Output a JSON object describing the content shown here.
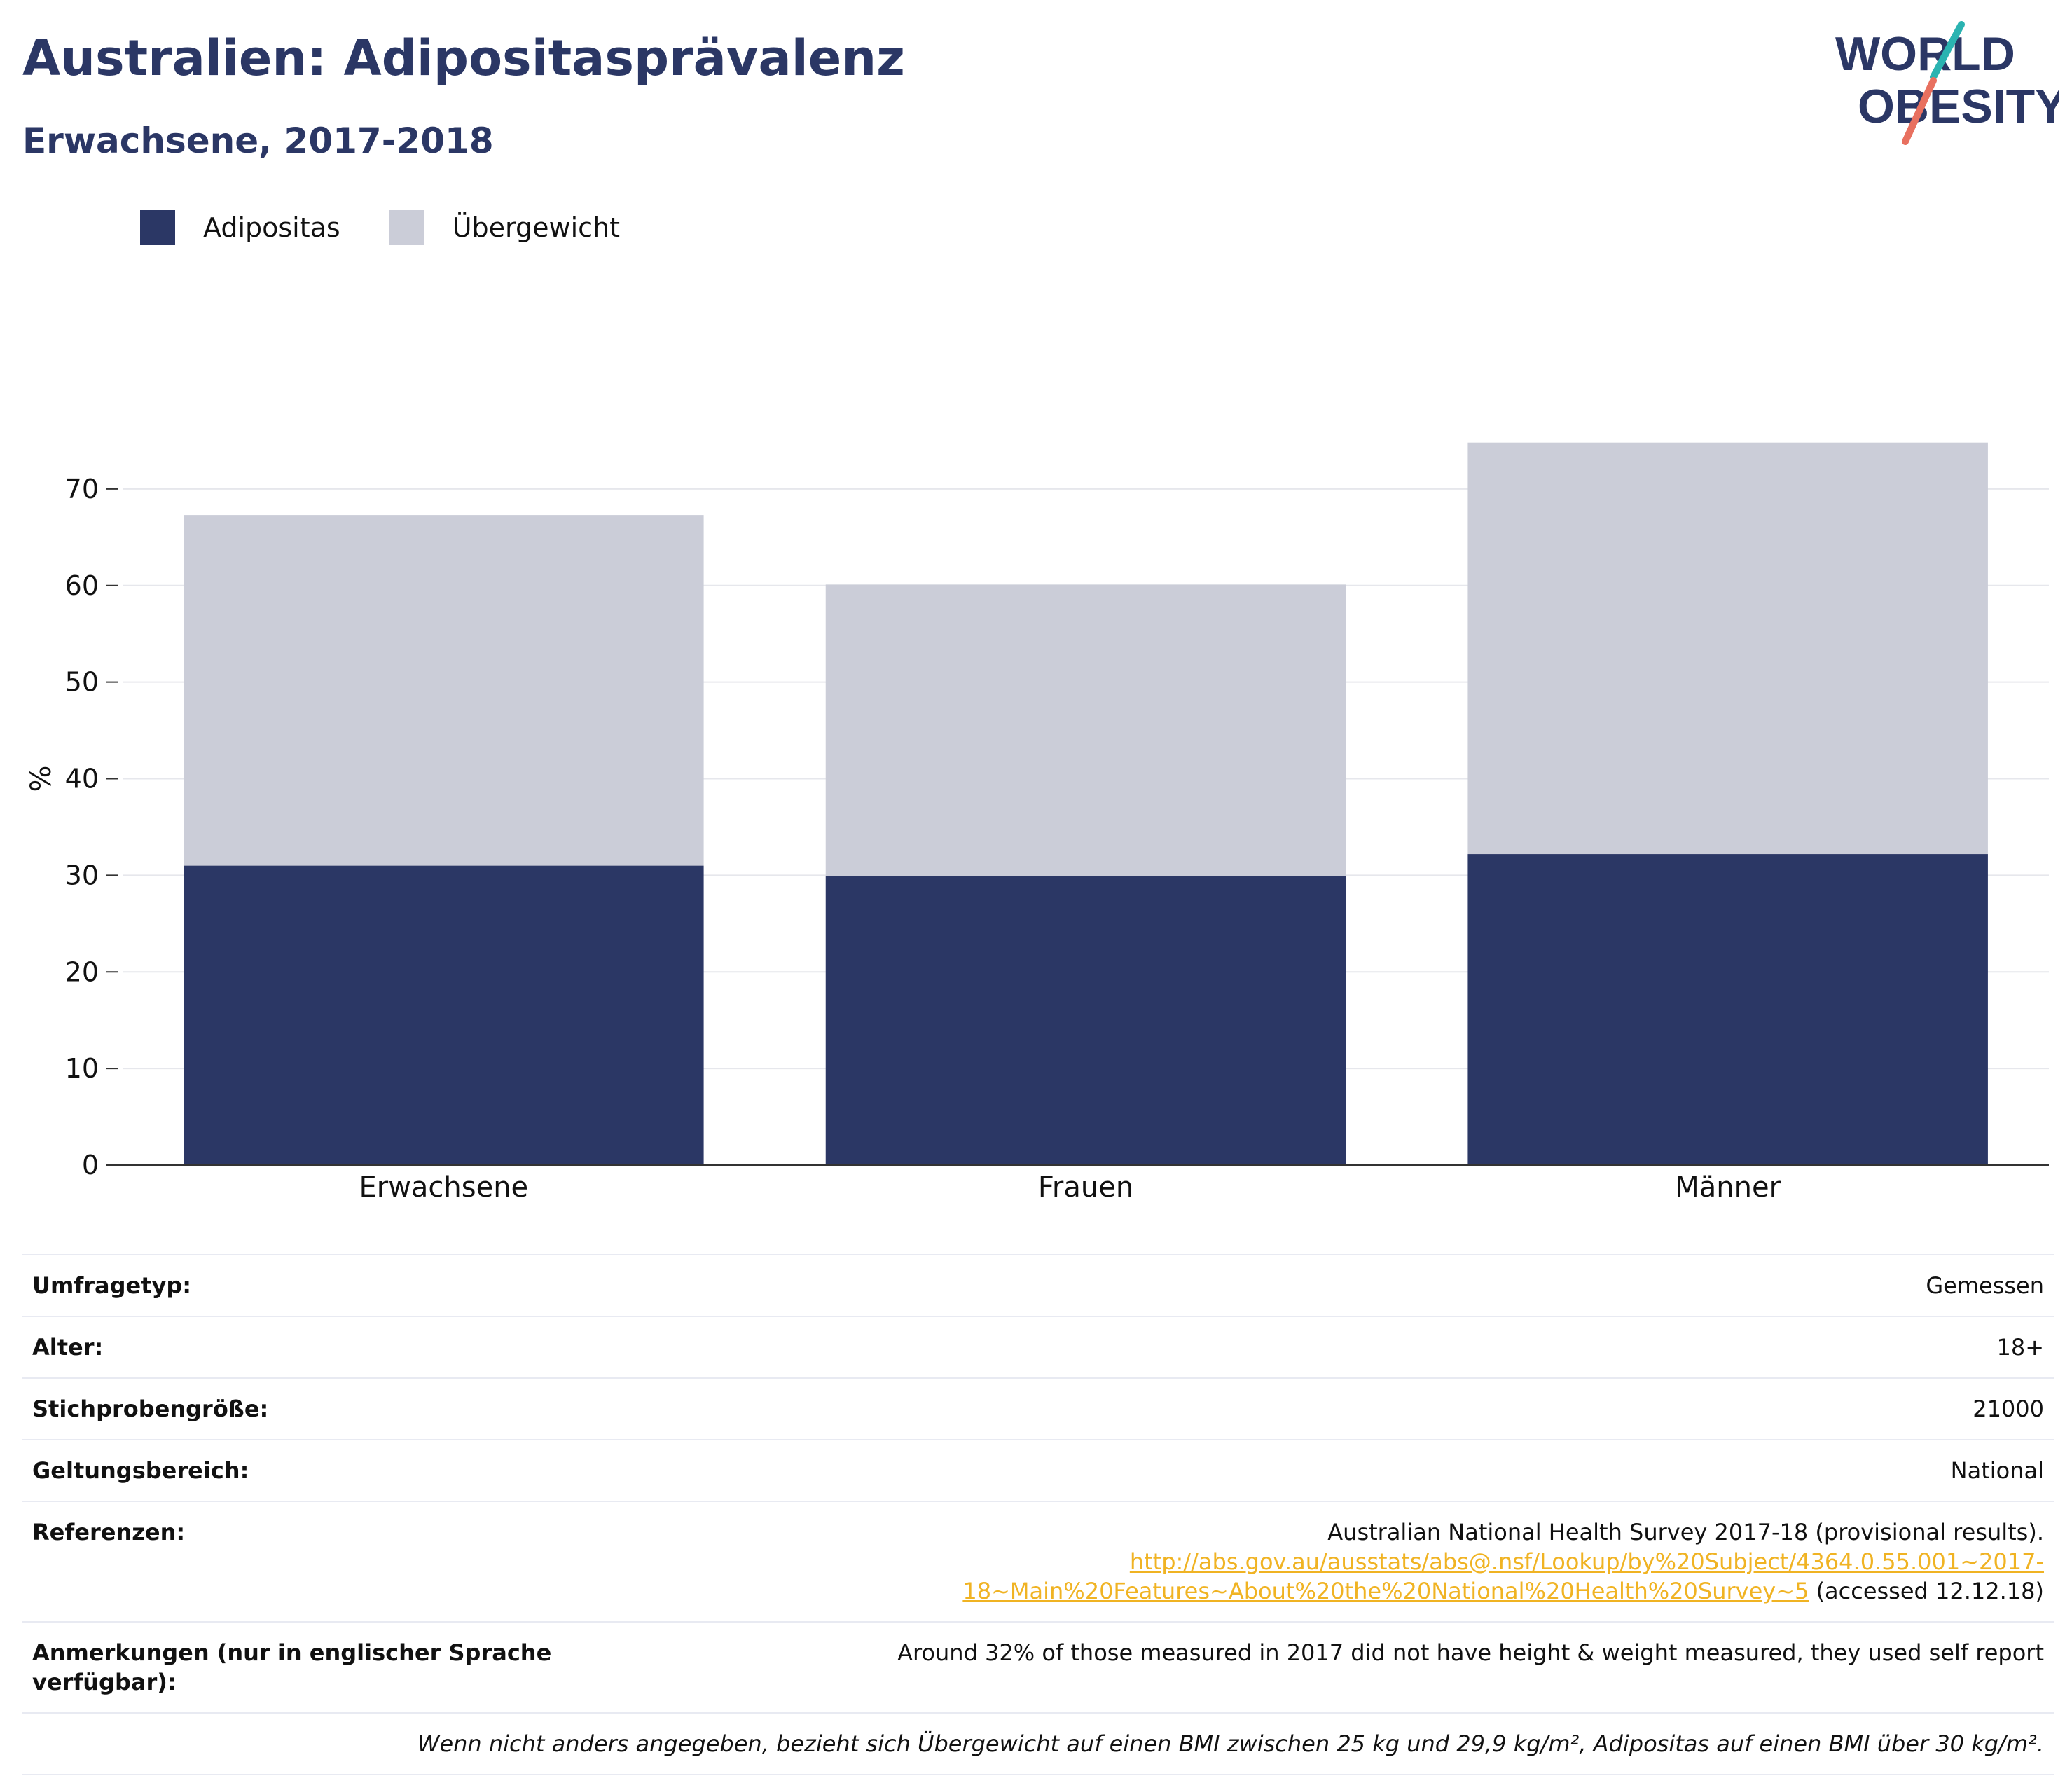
{
  "header": {
    "title": "Australien: Adipositasprävalenz",
    "subtitle": "Erwachsene, 2017-2018",
    "logo_line1": "WORLD",
    "logo_line2": "OBESITY"
  },
  "colors": {
    "adipositas": "#2b3765",
    "uebergewicht": "#cbcdd8",
    "accent_link": "#f0b323",
    "logo_teal": "#2bb3b1",
    "logo_coral": "#e8705f"
  },
  "legend": {
    "adipositas_label": "Adipositas",
    "uebergewicht_label": "Übergewicht"
  },
  "chart_data": {
    "type": "bar",
    "stacked": true,
    "categories": [
      "Erwachsene",
      "Frauen",
      "Männer"
    ],
    "series": [
      {
        "name": "Adipositas",
        "values": [
          31.0,
          29.9,
          32.2
        ]
      },
      {
        "name": "Übergewicht",
        "values": [
          36.3,
          30.2,
          42.6
        ]
      }
    ],
    "ylabel": "%",
    "ylim": [
      0,
      80
    ],
    "yticks": [
      0,
      10,
      20,
      30,
      40,
      50,
      60,
      70
    ],
    "grid": true,
    "legend_position": "top-left"
  },
  "info": {
    "survey_type": {
      "label": "Umfragetyp:",
      "value": "Gemessen"
    },
    "age": {
      "label": "Alter:",
      "value": "18+"
    },
    "sample_size": {
      "label": "Stichprobengröße:",
      "value": "21000"
    },
    "scope": {
      "label": "Geltungsbereich:",
      "value": "National"
    },
    "references": {
      "label": "Referenzen:",
      "text": "Australian National Health Survey 2017-18 (provisional results).",
      "link_part1": "http://abs.gov.au/ausstats/abs@.nsf/Lookup/by%20Subject/4364.0.55.001~2017-",
      "link_part2": "18~Main%20Features~About%20the%20National%20Health%20Survey~5",
      "accessed": " (accessed 12.12.18)"
    },
    "notes": {
      "label": "Anmerkungen (nur in englischer Sprache verfügbar):",
      "value": "Around 32% of those measured in 2017 did not have height & weight measured, they used self report"
    },
    "footnote": "Wenn nicht anders angegeben, bezieht sich Übergewicht auf einen BMI zwischen 25 kg und 29,9 kg/m², Adipositas auf einen BMI über 30 kg/m²."
  }
}
